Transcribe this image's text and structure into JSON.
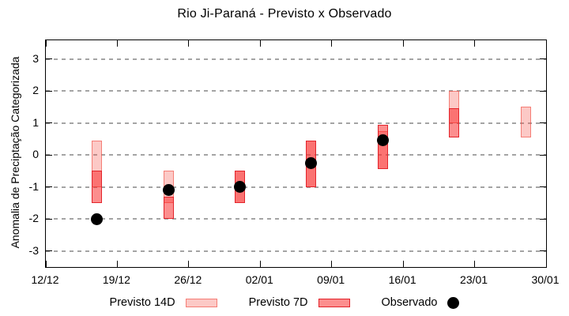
{
  "chart_data": {
    "type": "bar",
    "subtype": "range-bars-with-scatter",
    "title": "Rio Ji-Paraná - Previsto x Observado",
    "xlabel": "",
    "ylabel": "Anomalia de Preciptação Categorizada",
    "ylim": [
      -3.5,
      3.58
    ],
    "yticks": [
      3,
      2,
      1,
      0,
      -1,
      -2,
      -3
    ],
    "x_axis": {
      "total_days": 49,
      "tick_days": [
        0,
        7,
        14,
        21,
        28,
        35,
        42,
        49
      ],
      "tick_labels": [
        "12/12",
        "19/12",
        "26/12",
        "02/01",
        "09/01",
        "16/01",
        "23/01",
        "30/01"
      ]
    },
    "grid": {
      "horizontal_dashed": true,
      "vertical": false
    },
    "legend_position": "bottom",
    "series": [
      {
        "name": "Previsto 14D",
        "type": "range-bar",
        "points": [
          {
            "day": 5,
            "high": 0.45,
            "low": -1.0
          },
          {
            "day": 12,
            "high": -0.5,
            "low": -1.5
          },
          {
            "day": 19,
            "high": -0.5,
            "low": -1.5
          },
          {
            "day": 26,
            "high": 0.45,
            "low": -1.0
          },
          {
            "day": 33,
            "high": 0.75,
            "low": -0.45
          },
          {
            "day": 40,
            "high": 2.0,
            "low": 1.0
          },
          {
            "day": 47,
            "high": 1.5,
            "low": 0.55
          }
        ]
      },
      {
        "name": "Previsto 7D",
        "type": "range-bar",
        "points": [
          {
            "day": 5,
            "high": -0.5,
            "low": -1.5
          },
          {
            "day": 12,
            "high": -1.3,
            "low": -2.0
          },
          {
            "day": 19,
            "high": -0.5,
            "low": -1.5
          },
          {
            "day": 26,
            "high": 0.45,
            "low": -1.0
          },
          {
            "day": 33,
            "high": 0.95,
            "low": -0.45
          },
          {
            "day": 40,
            "high": 1.45,
            "low": 0.55
          }
        ]
      },
      {
        "name": "Observado",
        "type": "scatter",
        "points": [
          {
            "day": 5,
            "value": -2.0
          },
          {
            "day": 12,
            "value": -1.1
          },
          {
            "day": 19,
            "value": -1.0
          },
          {
            "day": 26,
            "value": -0.25
          },
          {
            "day": 33,
            "value": 0.45
          }
        ]
      }
    ]
  },
  "colors": {
    "previsto_14d_fill": "rgba(246,88,77,0.32)",
    "previsto_14d_border": "rgba(240,80,70,0.62)",
    "previsto_7d_fill": "rgba(250,30,30,0.50)",
    "previsto_7d_border": "#e3242b",
    "observado": "#000000",
    "grid": "#a4a4a4",
    "frame": "#000000"
  },
  "legend": {
    "items": [
      {
        "label": "Previsto 14D",
        "swatch": "box-14d"
      },
      {
        "label": "Previsto 7D",
        "swatch": "box-7d"
      },
      {
        "label": "Observado",
        "swatch": "dot"
      }
    ]
  }
}
